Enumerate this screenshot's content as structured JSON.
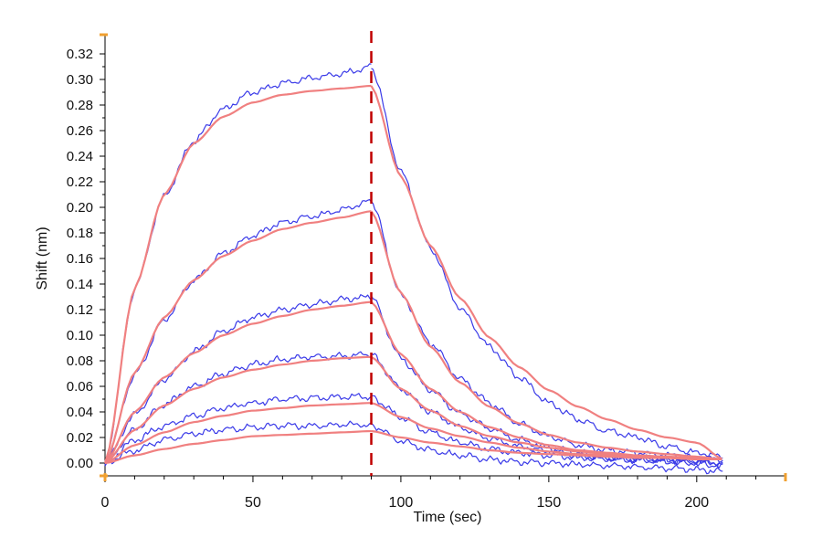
{
  "chart_data": {
    "type": "line",
    "title": "",
    "xlabel": "Time (sec)",
    "ylabel": "Shift (nm)",
    "xlim": [
      0,
      230
    ],
    "ylim": [
      -0.01,
      0.335
    ],
    "x_ticks": [
      0,
      50,
      100,
      150,
      200
    ],
    "x_tick_labels": [
      "0",
      "50",
      "100",
      "150",
      "200"
    ],
    "y_ticks": [
      0.0,
      0.02,
      0.04,
      0.06,
      0.08,
      0.1,
      0.12,
      0.14,
      0.16,
      0.18,
      0.2,
      0.22,
      0.24,
      0.26,
      0.28,
      0.3,
      0.32
    ],
    "y_tick_labels": [
      "0.00",
      "0.02",
      "0.04",
      "0.06",
      "0.08",
      "0.10",
      "0.12",
      "0.14",
      "0.16",
      "0.18",
      "0.20",
      "0.22",
      "0.24",
      "0.26",
      "0.28",
      "0.30",
      "0.32"
    ],
    "grid": false,
    "legend": "none",
    "dissociation_start": 90,
    "end_time": 209,
    "colors": {
      "measured": "#3a3ae8",
      "fit": "#f08080",
      "marker": "#c00000",
      "axis_cap": "#f0a030"
    },
    "series": [
      {
        "kind": "measured",
        "association": {
          "x": [
            0,
            10,
            20,
            30,
            40,
            50,
            60,
            70,
            80,
            90
          ],
          "y": [
            0.0,
            0.136,
            0.209,
            0.252,
            0.277,
            0.29,
            0.297,
            0.301,
            0.305,
            0.31
          ]
        },
        "dissociation": {
          "x": [
            90,
            100,
            110,
            120,
            130,
            140,
            150,
            160,
            170,
            180,
            190,
            200,
            209
          ],
          "y": [
            0.31,
            0.228,
            0.168,
            0.121,
            0.091,
            0.067,
            0.047,
            0.034,
            0.025,
            0.02,
            0.013,
            0.008,
            0.005
          ]
        }
      },
      {
        "kind": "measured",
        "association": {
          "x": [
            0,
            10,
            20,
            30,
            40,
            50,
            60,
            70,
            80,
            90
          ],
          "y": [
            0.0,
            0.069,
            0.112,
            0.143,
            0.164,
            0.178,
            0.188,
            0.193,
            0.198,
            0.205
          ]
        },
        "dissociation": {
          "x": [
            90,
            100,
            110,
            120,
            130,
            140,
            150,
            160,
            170,
            180,
            190,
            200,
            209
          ],
          "y": [
            0.205,
            0.131,
            0.094,
            0.066,
            0.047,
            0.031,
            0.021,
            0.014,
            0.01,
            0.008,
            0.006,
            0.004,
            0.003
          ]
        }
      },
      {
        "kind": "measured",
        "association": {
          "x": [
            0,
            10,
            20,
            30,
            40,
            50,
            60,
            70,
            80,
            90
          ],
          "y": [
            0.0,
            0.038,
            0.065,
            0.087,
            0.103,
            0.114,
            0.12,
            0.124,
            0.128,
            0.13
          ]
        },
        "dissociation": {
          "x": [
            90,
            100,
            110,
            120,
            130,
            140,
            150,
            160,
            170,
            180,
            190,
            200,
            209
          ],
          "y": [
            0.13,
            0.082,
            0.057,
            0.039,
            0.027,
            0.018,
            0.012,
            0.008,
            0.005,
            0.004,
            0.002,
            0.001,
            -0.001
          ]
        }
      },
      {
        "kind": "measured",
        "association": {
          "x": [
            0,
            10,
            20,
            30,
            40,
            50,
            60,
            70,
            80,
            90
          ],
          "y": [
            0.0,
            0.026,
            0.046,
            0.06,
            0.07,
            0.077,
            0.081,
            0.083,
            0.084,
            0.085
          ]
        },
        "dissociation": {
          "x": [
            90,
            100,
            110,
            120,
            130,
            140,
            150,
            160,
            170,
            180,
            190,
            200,
            209
          ],
          "y": [
            0.085,
            0.058,
            0.04,
            0.028,
            0.019,
            0.013,
            0.009,
            0.006,
            0.004,
            0.003,
            0.002,
            0.001,
            0.0
          ]
        }
      },
      {
        "kind": "measured",
        "association": {
          "x": [
            0,
            10,
            20,
            30,
            40,
            50,
            60,
            70,
            80,
            90
          ],
          "y": [
            0.0,
            0.018,
            0.029,
            0.037,
            0.043,
            0.047,
            0.05,
            0.051,
            0.052,
            0.052
          ]
        },
        "dissociation": {
          "x": [
            90,
            100,
            110,
            120,
            130,
            140,
            150,
            160,
            170,
            180,
            190,
            200,
            209
          ],
          "y": [
            0.052,
            0.036,
            0.024,
            0.016,
            0.011,
            0.008,
            0.006,
            0.004,
            0.003,
            0.002,
            0.001,
            0.0,
            -0.002
          ]
        }
      },
      {
        "kind": "measured",
        "association": {
          "x": [
            0,
            10,
            20,
            30,
            40,
            50,
            60,
            70,
            80,
            90
          ],
          "y": [
            0.0,
            0.01,
            0.018,
            0.023,
            0.026,
            0.028,
            0.029,
            0.029,
            0.03,
            0.03
          ]
        },
        "dissociation": {
          "x": [
            90,
            100,
            110,
            120,
            130,
            140,
            150,
            160,
            170,
            180,
            190,
            200,
            209
          ],
          "y": [
            0.03,
            0.017,
            0.01,
            0.006,
            0.003,
            0.001,
            0.0,
            -0.001,
            -0.002,
            -0.003,
            -0.004,
            -0.005,
            -0.007
          ]
        }
      },
      {
        "kind": "fit",
        "association": {
          "x": [
            0,
            10,
            20,
            30,
            40,
            50,
            60,
            70,
            80,
            90
          ],
          "y": [
            0.0,
            0.137,
            0.21,
            0.25,
            0.271,
            0.282,
            0.288,
            0.291,
            0.293,
            0.295
          ]
        },
        "dissociation": {
          "x": [
            90,
            100,
            110,
            120,
            130,
            140,
            150,
            160,
            170,
            180,
            190,
            200,
            209
          ],
          "y": [
            0.295,
            0.224,
            0.17,
            0.129,
            0.098,
            0.075,
            0.057,
            0.044,
            0.034,
            0.026,
            0.02,
            0.016,
            0.003
          ]
        }
      },
      {
        "kind": "fit",
        "association": {
          "x": [
            0,
            10,
            20,
            30,
            40,
            50,
            60,
            70,
            80,
            90
          ],
          "y": [
            0.0,
            0.071,
            0.114,
            0.143,
            0.162,
            0.174,
            0.183,
            0.188,
            0.192,
            0.197
          ]
        },
        "dissociation": {
          "x": [
            90,
            100,
            110,
            120,
            130,
            140,
            150,
            160,
            170,
            180,
            190,
            200,
            209
          ],
          "y": [
            0.197,
            0.133,
            0.091,
            0.063,
            0.044,
            0.031,
            0.022,
            0.016,
            0.012,
            0.009,
            0.007,
            0.005,
            0.003
          ]
        }
      },
      {
        "kind": "fit",
        "association": {
          "x": [
            0,
            10,
            20,
            30,
            40,
            50,
            60,
            70,
            80,
            90
          ],
          "y": [
            0.0,
            0.04,
            0.067,
            0.086,
            0.1,
            0.109,
            0.115,
            0.12,
            0.123,
            0.126
          ]
        },
        "dissociation": {
          "x": [
            90,
            100,
            110,
            120,
            130,
            140,
            150,
            160,
            170,
            180,
            190,
            200,
            209
          ],
          "y": [
            0.126,
            0.085,
            0.058,
            0.04,
            0.028,
            0.02,
            0.014,
            0.01,
            0.008,
            0.006,
            0.005,
            0.004,
            0.003
          ]
        }
      },
      {
        "kind": "fit",
        "association": {
          "x": [
            0,
            10,
            20,
            30,
            40,
            50,
            60,
            70,
            80,
            90
          ],
          "y": [
            0.0,
            0.026,
            0.045,
            0.058,
            0.067,
            0.073,
            0.077,
            0.08,
            0.082,
            0.083
          ]
        },
        "dissociation": {
          "x": [
            90,
            100,
            110,
            120,
            130,
            140,
            150,
            160,
            170,
            180,
            190,
            200,
            209
          ],
          "y": [
            0.083,
            0.058,
            0.041,
            0.029,
            0.021,
            0.016,
            0.012,
            0.009,
            0.007,
            0.005,
            0.004,
            0.003,
            0.003
          ]
        }
      },
      {
        "kind": "fit",
        "association": {
          "x": [
            0,
            10,
            20,
            30,
            40,
            50,
            60,
            70,
            80,
            90
          ],
          "y": [
            0.0,
            0.014,
            0.024,
            0.032,
            0.037,
            0.041,
            0.043,
            0.045,
            0.046,
            0.047
          ]
        },
        "dissociation": {
          "x": [
            90,
            100,
            110,
            120,
            130,
            140,
            150,
            160,
            170,
            180,
            190,
            200,
            209
          ],
          "y": [
            0.047,
            0.036,
            0.027,
            0.021,
            0.016,
            0.012,
            0.009,
            0.007,
            0.006,
            0.005,
            0.004,
            0.003,
            0.003
          ]
        }
      },
      {
        "kind": "fit",
        "association": {
          "x": [
            0,
            10,
            20,
            30,
            40,
            50,
            60,
            70,
            80,
            90
          ],
          "y": [
            0.0,
            0.006,
            0.011,
            0.015,
            0.018,
            0.021,
            0.022,
            0.023,
            0.024,
            0.025
          ]
        },
        "dissociation": {
          "x": [
            90,
            100,
            110,
            120,
            130,
            140,
            150,
            160,
            170,
            180,
            190,
            200,
            209
          ],
          "y": [
            0.025,
            0.02,
            0.016,
            0.013,
            0.01,
            0.008,
            0.007,
            0.006,
            0.005,
            0.004,
            0.004,
            0.003,
            0.003
          ]
        }
      }
    ]
  }
}
